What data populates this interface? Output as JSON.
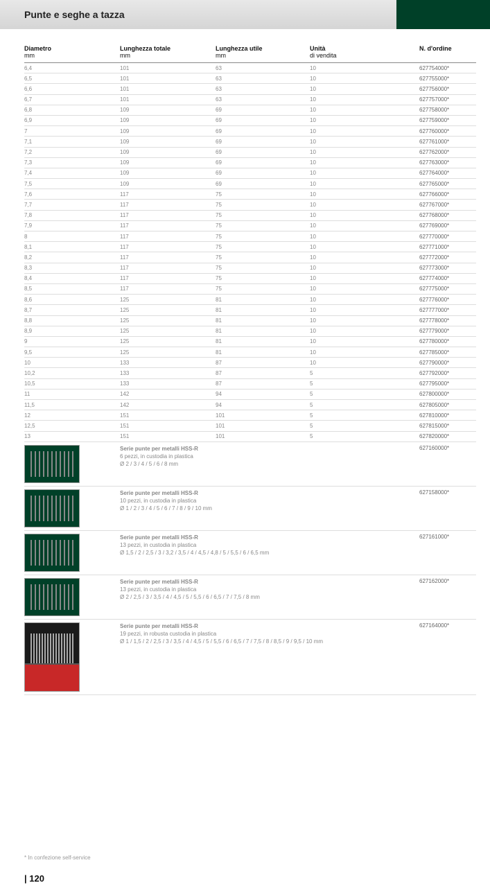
{
  "header": {
    "title": "Punte e seghe a tazza"
  },
  "columns": {
    "dia": {
      "label": "Diametro",
      "sub": "mm"
    },
    "lt": {
      "label": "Lunghezza totale",
      "sub": "mm"
    },
    "lu": {
      "label": "Lunghezza utile",
      "sub": "mm"
    },
    "uv": {
      "label": "Unità",
      "sub": "di vendita"
    },
    "ord": {
      "label": "N. d'ordine",
      "sub": ""
    }
  },
  "rows": [
    {
      "dia": "6,4",
      "lt": "101",
      "lu": "63",
      "uv": "10",
      "ord": "627754000*"
    },
    {
      "dia": "6,5",
      "lt": "101",
      "lu": "63",
      "uv": "10",
      "ord": "627755000*"
    },
    {
      "dia": "6,6",
      "lt": "101",
      "lu": "63",
      "uv": "10",
      "ord": "627756000*"
    },
    {
      "dia": "6,7",
      "lt": "101",
      "lu": "63",
      "uv": "10",
      "ord": "627757000*"
    },
    {
      "dia": "6,8",
      "lt": "109",
      "lu": "69",
      "uv": "10",
      "ord": "627758000*"
    },
    {
      "dia": "6,9",
      "lt": "109",
      "lu": "69",
      "uv": "10",
      "ord": "627759000*"
    },
    {
      "dia": "7",
      "lt": "109",
      "lu": "69",
      "uv": "10",
      "ord": "627760000*"
    },
    {
      "dia": "7,1",
      "lt": "109",
      "lu": "69",
      "uv": "10",
      "ord": "627761000*"
    },
    {
      "dia": "7,2",
      "lt": "109",
      "lu": "69",
      "uv": "10",
      "ord": "627762000*"
    },
    {
      "dia": "7,3",
      "lt": "109",
      "lu": "69",
      "uv": "10",
      "ord": "627763000*"
    },
    {
      "dia": "7,4",
      "lt": "109",
      "lu": "69",
      "uv": "10",
      "ord": "627764000*"
    },
    {
      "dia": "7,5",
      "lt": "109",
      "lu": "69",
      "uv": "10",
      "ord": "627765000*"
    },
    {
      "dia": "7,6",
      "lt": "117",
      "lu": "75",
      "uv": "10",
      "ord": "627766000*"
    },
    {
      "dia": "7,7",
      "lt": "117",
      "lu": "75",
      "uv": "10",
      "ord": "627767000*"
    },
    {
      "dia": "7,8",
      "lt": "117",
      "lu": "75",
      "uv": "10",
      "ord": "627768000*"
    },
    {
      "dia": "7,9",
      "lt": "117",
      "lu": "75",
      "uv": "10",
      "ord": "627769000*"
    },
    {
      "dia": "8",
      "lt": "117",
      "lu": "75",
      "uv": "10",
      "ord": "627770000*"
    },
    {
      "dia": "8,1",
      "lt": "117",
      "lu": "75",
      "uv": "10",
      "ord": "627771000*"
    },
    {
      "dia": "8,2",
      "lt": "117",
      "lu": "75",
      "uv": "10",
      "ord": "627772000*"
    },
    {
      "dia": "8,3",
      "lt": "117",
      "lu": "75",
      "uv": "10",
      "ord": "627773000*"
    },
    {
      "dia": "8,4",
      "lt": "117",
      "lu": "75",
      "uv": "10",
      "ord": "627774000*"
    },
    {
      "dia": "8,5",
      "lt": "117",
      "lu": "75",
      "uv": "10",
      "ord": "627775000*"
    },
    {
      "dia": "8,6",
      "lt": "125",
      "lu": "81",
      "uv": "10",
      "ord": "627776000*"
    },
    {
      "dia": "8,7",
      "lt": "125",
      "lu": "81",
      "uv": "10",
      "ord": "627777000*"
    },
    {
      "dia": "8,8",
      "lt": "125",
      "lu": "81",
      "uv": "10",
      "ord": "627778000*"
    },
    {
      "dia": "8,9",
      "lt": "125",
      "lu": "81",
      "uv": "10",
      "ord": "627779000*"
    },
    {
      "dia": "9",
      "lt": "125",
      "lu": "81",
      "uv": "10",
      "ord": "627780000*"
    },
    {
      "dia": "9,5",
      "lt": "125",
      "lu": "81",
      "uv": "10",
      "ord": "627785000*"
    },
    {
      "dia": "10",
      "lt": "133",
      "lu": "87",
      "uv": "10",
      "ord": "627790000*"
    },
    {
      "dia": "10,2",
      "lt": "133",
      "lu": "87",
      "uv": "5",
      "ord": "627792000*"
    },
    {
      "dia": "10,5",
      "lt": "133",
      "lu": "87",
      "uv": "5",
      "ord": "627795000*"
    },
    {
      "dia": "11",
      "lt": "142",
      "lu": "94",
      "uv": "5",
      "ord": "627800000*"
    },
    {
      "dia": "11,5",
      "lt": "142",
      "lu": "94",
      "uv": "5",
      "ord": "627805000*"
    },
    {
      "dia": "12",
      "lt": "151",
      "lu": "101",
      "uv": "5",
      "ord": "627810000*"
    },
    {
      "dia": "12,5",
      "lt": "151",
      "lu": "101",
      "uv": "5",
      "ord": "627815000*"
    },
    {
      "dia": "13",
      "lt": "151",
      "lu": "101",
      "uv": "5",
      "ord": "627820000*"
    }
  ],
  "kits": [
    {
      "cls": "",
      "title": "Serie punte per metalli HSS-R",
      "line2": "6 pezzi, in custodia in plastica",
      "line3": "Ø 2 / 3 / 4 / 5 / 6 / 8 mm",
      "ord": "627160000*"
    },
    {
      "cls": "",
      "title": "Serie punte per metalli HSS-R",
      "line2": "10 pezzi, in custodia in plastica",
      "line3": "Ø 1 / 2 / 3 / 4 / 5 / 6 / 7 / 8 / 9 / 10 mm",
      "ord": "627158000*"
    },
    {
      "cls": "",
      "title": "Serie punte per metalli HSS-R",
      "line2": "13 pezzi, in custodia in plastica",
      "line3": "Ø 1,5 / 2 / 2,5 / 3 / 3,2 / 3,5 / 4 / 4,5 / 4,8 / 5 / 5,5 / 6 / 6,5 mm",
      "ord": "627161000*"
    },
    {
      "cls": "",
      "title": "Serie punte per metalli HSS-R",
      "line2": "13 pezzi, in custodia in plastica",
      "line3": "Ø 2 / 2,5 / 3 / 3,5 / 4 / 4,5 / 5 / 5,5 / 6 / 6,5 / 7 / 7,5 / 8 mm",
      "ord": "627162000*"
    },
    {
      "cls": "big",
      "title": "Serie punte per metalli HSS-R",
      "line2": "19 pezzi, in robusta custodia in plastica",
      "line3": "Ø 1 / 1,5 / 2 / 2,5 / 3 / 3,5 / 4 / 4,5 / 5 / 5,5 / 6 / 6,5 / 7 / 7,5 / 8 / 8,5 / 9 / 9,5 / 10 mm",
      "ord": "627164000*"
    }
  ],
  "footnote": "* In confezione self-service",
  "pagenum": "| 120"
}
